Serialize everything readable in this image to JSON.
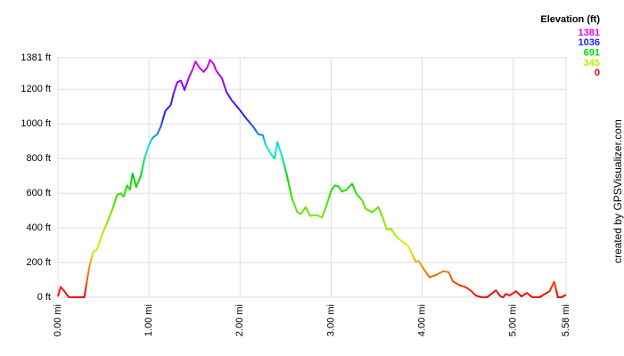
{
  "chart_data": {
    "type": "line",
    "credit": "created by GPSVisualizer.com",
    "legend": {
      "title": "Elevation (ft)",
      "stops": [
        {
          "value": 1381,
          "color": "#ee00ee"
        },
        {
          "value": 1036,
          "color": "#2222ee"
        },
        {
          "value": 691,
          "color": "#00dd00"
        },
        {
          "value": 345,
          "color": "#bbee00"
        },
        {
          "value": 0,
          "color": "#ee0000"
        }
      ]
    },
    "x": [
      0,
      0.03,
      0.07,
      0.12,
      0.29,
      0.32,
      0.35,
      0.39,
      0.43,
      0.48,
      0.54,
      0.6,
      0.65,
      0.69,
      0.72,
      0.76,
      0.79,
      0.82,
      0.86,
      0.91,
      0.95,
      1.0,
      1.04,
      1.09,
      1.13,
      1.18,
      1.24,
      1.27,
      1.31,
      1.35,
      1.39,
      1.44,
      1.48,
      1.51,
      1.56,
      1.6,
      1.64,
      1.67,
      1.71,
      1.74,
      1.8,
      1.85,
      1.91,
      1.99,
      2.07,
      2.15,
      2.2,
      2.25,
      2.28,
      2.34,
      2.38,
      2.41,
      2.46,
      2.52,
      2.57,
      2.63,
      2.67,
      2.72,
      2.77,
      2.84,
      2.9,
      2.95,
      3.0,
      3.04,
      3.08,
      3.12,
      3.17,
      3.23,
      3.28,
      3.34,
      3.38,
      3.45,
      3.52,
      3.57,
      3.61,
      3.66,
      3.7,
      3.77,
      3.84,
      3.89,
      3.93,
      3.96,
      4.02,
      4.08,
      4.16,
      4.23,
      4.29,
      4.34,
      4.41,
      4.47,
      4.53,
      4.59,
      4.65,
      4.71,
      4.75,
      4.81,
      4.86,
      4.89,
      4.92,
      4.96,
      5.03,
      5.09,
      5.15,
      5.21,
      5.29,
      5.35,
      5.4,
      5.45,
      5.49,
      5.53,
      5.58
    ],
    "values": [
      5,
      60,
      35,
      0,
      0,
      100,
      190,
      265,
      275,
      355,
      430,
      510,
      590,
      600,
      580,
      645,
      620,
      715,
      635,
      700,
      800,
      880,
      920,
      940,
      985,
      1075,
      1110,
      1175,
      1240,
      1250,
      1195,
      1270,
      1315,
      1360,
      1320,
      1300,
      1325,
      1370,
      1345,
      1305,
      1265,
      1185,
      1135,
      1085,
      1030,
      980,
      940,
      935,
      880,
      825,
      800,
      895,
      815,
      690,
      570,
      490,
      480,
      520,
      470,
      475,
      460,
      530,
      615,
      645,
      640,
      610,
      620,
      655,
      595,
      560,
      510,
      490,
      520,
      455,
      390,
      395,
      360,
      325,
      300,
      250,
      205,
      210,
      160,
      115,
      130,
      150,
      145,
      90,
      70,
      60,
      40,
      10,
      0,
      0,
      15,
      40,
      5,
      0,
      20,
      10,
      35,
      5,
      25,
      0,
      0,
      20,
      35,
      90,
      0,
      0,
      15
    ],
    "xlim": [
      0,
      5.58
    ],
    "ylim": [
      0,
      1381
    ],
    "xticks": [
      {
        "value": 0,
        "label": "0.00 mi"
      },
      {
        "value": 1,
        "label": "1.00 mi"
      },
      {
        "value": 2,
        "label": "2.00 mi"
      },
      {
        "value": 3,
        "label": "3.00 mi"
      },
      {
        "value": 4,
        "label": "4.00 mi"
      },
      {
        "value": 5,
        "label": "5.00 mi"
      },
      {
        "value": 5.58,
        "label": "5.58 mi"
      }
    ],
    "yticks": [
      {
        "value": 0,
        "label": "0 ft"
      },
      {
        "value": 200,
        "label": "200 ft"
      },
      {
        "value": 400,
        "label": "400 ft"
      },
      {
        "value": 600,
        "label": "600 ft"
      },
      {
        "value": 800,
        "label": "800 ft"
      },
      {
        "value": 1000,
        "label": "1000 ft"
      },
      {
        "value": 1200,
        "label": "1200 ft"
      },
      {
        "value": 1381,
        "label": "1381 ft"
      }
    ],
    "grid": true
  }
}
